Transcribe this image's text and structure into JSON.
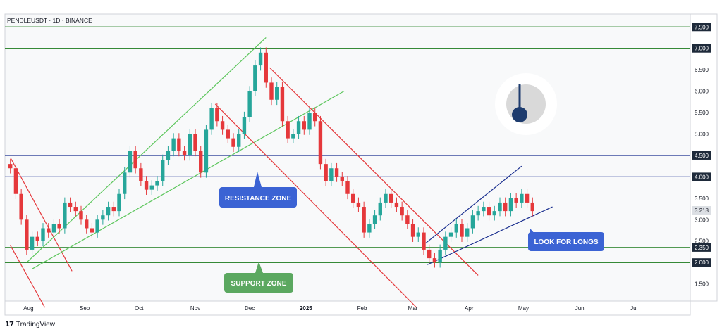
{
  "chart_data": {
    "type": "candlestick",
    "title": "PENDLEUSDT · 1D · BINANCE",
    "ylim": [
      1.1,
      7.8
    ],
    "y_ticks": [
      "1.500",
      "2.500",
      "3.000",
      "3.500",
      "5.000",
      "5.500",
      "6.000",
      "6.500"
    ],
    "x_ticks": [
      {
        "label": "Aug",
        "date": "2024-08-01"
      },
      {
        "label": "Sep",
        "date": "2024-09-01"
      },
      {
        "label": "Oct",
        "date": "2024-10-01"
      },
      {
        "label": "Nov",
        "date": "2024-11-01"
      },
      {
        "label": "Dec",
        "date": "2024-12-01"
      },
      {
        "label": "2025",
        "date": "2025-01-01"
      },
      {
        "label": "Feb",
        "date": "2025-02-01"
      },
      {
        "label": "Mar",
        "date": "2025-03-01"
      },
      {
        "label": "Apr",
        "date": "2025-04-01"
      },
      {
        "label": "May",
        "date": "2025-05-01"
      },
      {
        "label": "Jun",
        "date": "2025-06-01"
      },
      {
        "label": "Jul",
        "date": "2025-07-01"
      }
    ],
    "last_price": "3.218",
    "levels": [
      {
        "value": 7.5,
        "label": "7.500",
        "color": "#1b7a1b"
      },
      {
        "value": 7.0,
        "label": "7.000",
        "color": "#1b7a1b"
      },
      {
        "value": 4.5,
        "label": "4.500",
        "color": "#1a2f8f"
      },
      {
        "value": 4.0,
        "label": "4.000",
        "color": "#1a2f8f"
      },
      {
        "value": 2.35,
        "label": "2.350",
        "color": "#1b7a1b"
      },
      {
        "value": 2.0,
        "label": "2.000",
        "color": "#1b7a1b"
      }
    ],
    "channels": [
      {
        "color": "#e5383b",
        "from": [
          "2024-07-22",
          4.45
        ],
        "to": [
          "2024-08-25",
          1.8
        ]
      },
      {
        "color": "#e5383b",
        "from": [
          "2024-07-22",
          2.4
        ],
        "to": [
          "2024-08-10",
          0.95
        ]
      },
      {
        "color": "#5cc65c",
        "from": [
          "2024-07-31",
          2.0
        ],
        "to": [
          "2024-12-10",
          7.25
        ]
      },
      {
        "color": "#5cc65c",
        "from": [
          "2024-08-03",
          1.85
        ],
        "to": [
          "2025-01-22",
          6.0
        ]
      },
      {
        "color": "#e5383b",
        "from": [
          "2024-11-12",
          5.7
        ],
        "to": [
          "2025-03-03",
          0.95
        ]
      },
      {
        "color": "#e5383b",
        "from": [
          "2024-12-12",
          6.55
        ],
        "to": [
          "2025-04-06",
          1.7
        ]
      },
      {
        "color": "#1a2f8f",
        "from": [
          "2025-03-09",
          1.95
        ],
        "to": [
          "2025-05-17",
          3.3
        ]
      },
      {
        "color": "#1a2f8f",
        "from": [
          "2025-03-08",
          2.45
        ],
        "to": [
          "2025-04-30",
          4.25
        ]
      }
    ],
    "candles": [
      [
        "2024-07-22",
        4.3,
        4.2
      ],
      [
        "2024-07-25",
        4.2,
        3.6
      ],
      [
        "2024-07-28",
        3.6,
        3.0
      ],
      [
        "2024-07-31",
        3.0,
        2.3
      ],
      [
        "2024-08-03",
        2.3,
        2.6
      ],
      [
        "2024-08-06",
        2.6,
        2.5
      ],
      [
        "2024-08-09",
        2.5,
        2.8
      ],
      [
        "2024-08-12",
        2.8,
        2.7
      ],
      [
        "2024-08-15",
        2.7,
        2.9
      ],
      [
        "2024-08-18",
        2.9,
        2.8
      ],
      [
        "2024-08-21",
        2.8,
        3.4
      ],
      [
        "2024-08-24",
        3.4,
        3.3
      ],
      [
        "2024-08-27",
        3.3,
        3.2
      ],
      [
        "2024-08-30",
        3.2,
        3.0
      ],
      [
        "2024-09-02",
        3.0,
        2.8
      ],
      [
        "2024-09-05",
        2.8,
        2.7
      ],
      [
        "2024-09-08",
        2.7,
        3.0
      ],
      [
        "2024-09-11",
        3.0,
        3.1
      ],
      [
        "2024-09-14",
        3.1,
        3.3
      ],
      [
        "2024-09-17",
        3.3,
        3.2
      ],
      [
        "2024-09-20",
        3.2,
        3.6
      ],
      [
        "2024-09-23",
        3.6,
        4.1
      ],
      [
        "2024-09-26",
        4.1,
        4.6
      ],
      [
        "2024-09-29",
        4.6,
        4.2
      ],
      [
        "2024-10-02",
        4.2,
        3.9
      ],
      [
        "2024-10-05",
        3.9,
        3.7
      ],
      [
        "2024-10-08",
        3.7,
        3.8
      ],
      [
        "2024-10-11",
        3.8,
        3.9
      ],
      [
        "2024-10-14",
        3.9,
        4.4
      ],
      [
        "2024-10-17",
        4.4,
        4.6
      ],
      [
        "2024-10-20",
        4.6,
        4.9
      ],
      [
        "2024-10-23",
        4.9,
        4.6
      ],
      [
        "2024-10-26",
        4.6,
        4.5
      ],
      [
        "2024-10-29",
        4.5,
        5.0
      ],
      [
        "2024-11-01",
        5.0,
        4.6
      ],
      [
        "2024-11-04",
        4.6,
        4.1
      ],
      [
        "2024-11-07",
        4.1,
        5.1
      ],
      [
        "2024-11-10",
        5.1,
        5.6
      ],
      [
        "2024-11-13",
        5.6,
        5.3
      ],
      [
        "2024-11-16",
        5.3,
        5.1
      ],
      [
        "2024-11-19",
        5.1,
        4.9
      ],
      [
        "2024-11-22",
        4.9,
        4.7
      ],
      [
        "2024-11-25",
        4.7,
        5.0
      ],
      [
        "2024-11-28",
        5.0,
        5.4
      ],
      [
        "2024-12-01",
        5.4,
        6.0
      ],
      [
        "2024-12-04",
        6.0,
        6.6
      ],
      [
        "2024-12-07",
        6.6,
        6.9
      ],
      [
        "2024-12-10",
        6.9,
        6.2
      ],
      [
        "2024-12-13",
        6.2,
        5.8
      ],
      [
        "2024-12-16",
        5.8,
        6.1
      ],
      [
        "2024-12-19",
        6.1,
        5.3
      ],
      [
        "2024-12-22",
        5.3,
        4.9
      ],
      [
        "2024-12-25",
        4.9,
        5.0
      ],
      [
        "2024-12-28",
        5.0,
        5.3
      ],
      [
        "2024-12-31",
        5.3,
        5.1
      ],
      [
        "2025-01-03",
        5.1,
        5.5
      ],
      [
        "2025-01-06",
        5.5,
        5.3
      ],
      [
        "2025-01-09",
        5.3,
        4.3
      ],
      [
        "2025-01-12",
        4.3,
        3.9
      ],
      [
        "2025-01-15",
        3.9,
        4.2
      ],
      [
        "2025-01-18",
        4.2,
        4.0
      ],
      [
        "2025-01-21",
        4.0,
        3.9
      ],
      [
        "2025-01-24",
        3.9,
        3.6
      ],
      [
        "2025-01-27",
        3.6,
        3.4
      ],
      [
        "2025-01-30",
        3.4,
        3.3
      ],
      [
        "2025-02-02",
        3.3,
        2.7
      ],
      [
        "2025-02-05",
        2.7,
        2.9
      ],
      [
        "2025-02-08",
        2.9,
        3.1
      ],
      [
        "2025-02-11",
        3.1,
        3.4
      ],
      [
        "2025-02-14",
        3.4,
        3.6
      ],
      [
        "2025-02-17",
        3.6,
        3.4
      ],
      [
        "2025-02-20",
        3.4,
        3.3
      ],
      [
        "2025-02-23",
        3.3,
        3.1
      ],
      [
        "2025-02-26",
        3.1,
        2.9
      ],
      [
        "2025-03-01",
        2.9,
        2.6
      ],
      [
        "2025-03-04",
        2.6,
        2.7
      ],
      [
        "2025-03-07",
        2.7,
        2.3
      ],
      [
        "2025-03-10",
        2.3,
        2.1
      ],
      [
        "2025-03-13",
        2.1,
        2.0
      ],
      [
        "2025-03-16",
        2.0,
        2.3
      ],
      [
        "2025-03-19",
        2.3,
        2.6
      ],
      [
        "2025-03-22",
        2.6,
        2.7
      ],
      [
        "2025-03-25",
        2.7,
        2.9
      ],
      [
        "2025-03-28",
        2.9,
        2.6
      ],
      [
        "2025-03-31",
        2.6,
        2.8
      ],
      [
        "2025-04-03",
        2.8,
        3.1
      ],
      [
        "2025-04-06",
        3.1,
        3.2
      ],
      [
        "2025-04-09",
        3.2,
        3.3
      ],
      [
        "2025-04-12",
        3.3,
        3.1
      ],
      [
        "2025-04-15",
        3.1,
        3.2
      ],
      [
        "2025-04-18",
        3.2,
        3.4
      ],
      [
        "2025-04-21",
        3.4,
        3.2
      ],
      [
        "2025-04-24",
        3.2,
        3.5
      ],
      [
        "2025-04-27",
        3.5,
        3.4
      ],
      [
        "2025-04-30",
        3.4,
        3.6
      ],
      [
        "2025-05-03",
        3.6,
        3.4
      ],
      [
        "2025-05-06",
        3.4,
        3.2
      ]
    ],
    "annotations": [
      {
        "id": "resistance",
        "text": "RESISTANCE ZONE",
        "color": "#3b63d4"
      },
      {
        "id": "support",
        "text": "SUPPORT ZONE",
        "color": "#5ba860"
      },
      {
        "id": "longs",
        "text": "LOOK FOR LONGS",
        "color": "#3b63d4"
      }
    ],
    "up_color": "#26a69a",
    "down_color": "#e5383b",
    "clock_fill": "#1e3c6e"
  },
  "footer": {
    "brand": "TradingView"
  }
}
